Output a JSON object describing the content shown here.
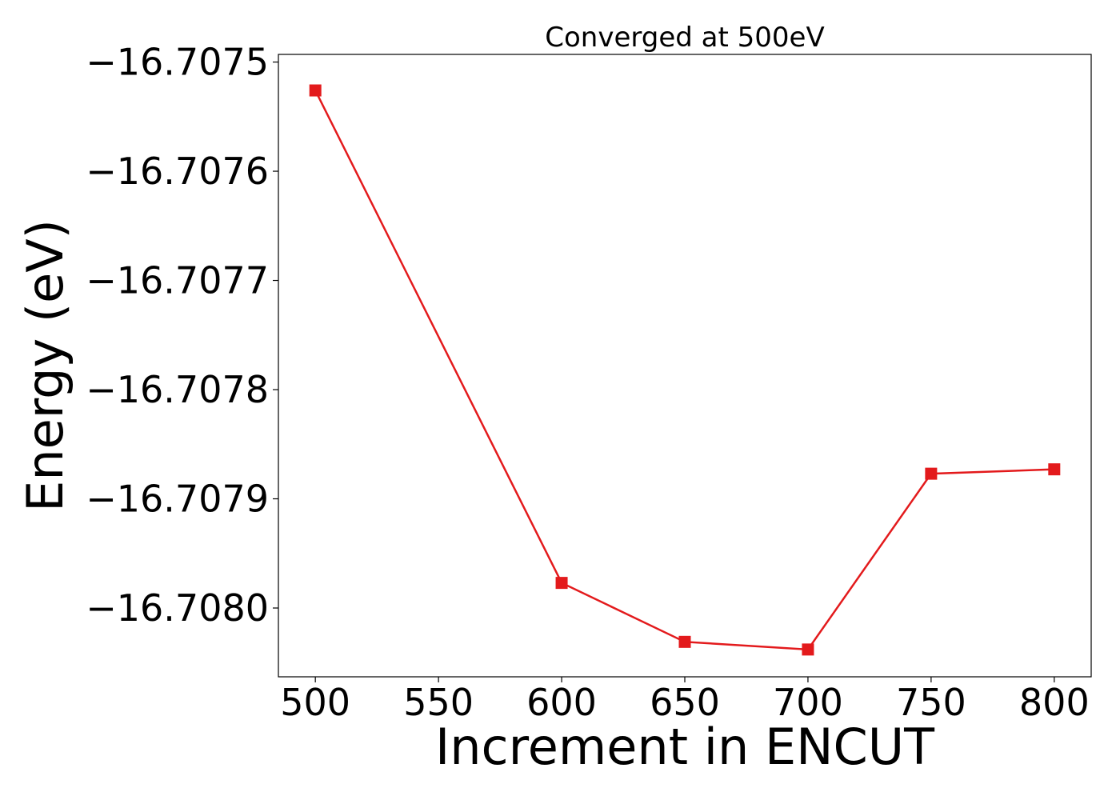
{
  "chart_data": {
    "type": "line",
    "title": "Converged at 500eV",
    "xlabel": "Increment in ENCUT",
    "ylabel": "Energy (eV)",
    "x": [
      500,
      600,
      650,
      700,
      750,
      800
    ],
    "series": [
      {
        "values": [
          -16.707526,
          -16.707977,
          -16.708031,
          -16.708038,
          -16.707877,
          -16.707873
        ],
        "color": "#e31a1c",
        "marker": "square"
      }
    ],
    "xlim": [
      485,
      815
    ],
    "ylim": [
      -16.708063,
      -16.707493
    ],
    "xticks": [
      500,
      550,
      600,
      650,
      700,
      750,
      800
    ],
    "xtick_labels": [
      "500",
      "550",
      "600",
      "650",
      "700",
      "750",
      "800"
    ],
    "yticks": [
      -16.7075,
      -16.7076,
      -16.7077,
      -16.7078,
      -16.7079,
      -16.708
    ],
    "ytick_labels": [
      "−16.7075",
      "−16.7076",
      "−16.7077",
      "−16.7078",
      "−16.7079",
      "−16.7080"
    ],
    "grid": false,
    "legend": "none"
  }
}
